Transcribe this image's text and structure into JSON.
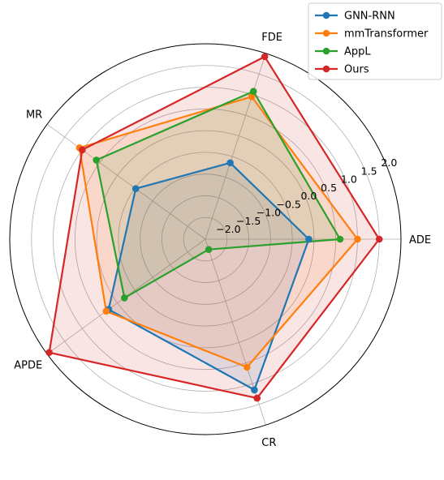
{
  "chart_data": {
    "type": "radar",
    "axes": [
      "ADE",
      "FDE",
      "MR",
      "APDE",
      "CR"
    ],
    "r_ticks": [
      -2.0,
      -1.5,
      -1.0,
      -0.5,
      0.0,
      0.5,
      1.0,
      1.5,
      2.0
    ],
    "r_tick_labels": [
      "−2.0",
      "−1.5",
      "−1.0",
      "−0.5",
      "0.0",
      "0.5",
      "1.0",
      "1.5",
      "2.0"
    ],
    "rlim": [
      -2.5,
      2.0
    ],
    "grid": true,
    "legend_position": "top-right",
    "series": [
      {
        "name": "GNN-RNN",
        "color": "#1f77b4",
        "values": [
          -0.12,
          -0.65,
          -0.52,
          0.25,
          1.15
        ]
      },
      {
        "name": "mmTransformer",
        "color": "#ff7f0e",
        "values": [
          1.0,
          0.95,
          1.08,
          0.32,
          0.6
        ]
      },
      {
        "name": "AppL",
        "color": "#2ca02c",
        "values": [
          0.6,
          1.08,
          0.6,
          -0.2,
          -2.25
        ]
      },
      {
        "name": "Ours",
        "color": "#d62728",
        "values": [
          1.5,
          1.92,
          1.0,
          1.94,
          1.35
        ]
      }
    ]
  }
}
